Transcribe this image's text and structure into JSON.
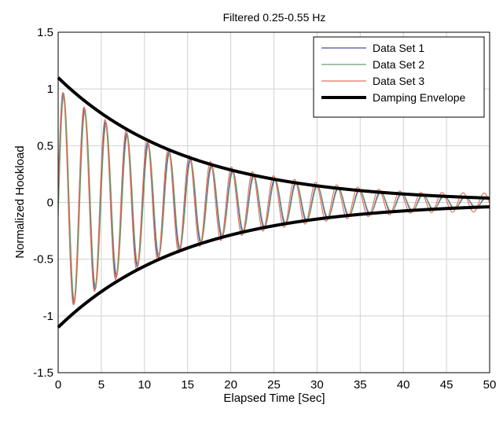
{
  "chart_data": {
    "type": "line",
    "title": "Filtered 0.25-0.55 Hz",
    "xlabel": "Elapsed Time [Sec]",
    "ylabel": "Normalized Hookload",
    "xlim": [
      0,
      50
    ],
    "ylim": [
      -1.5,
      1.5
    ],
    "x_ticks": [
      0,
      5,
      10,
      15,
      20,
      25,
      30,
      35,
      40,
      45,
      50
    ],
    "y_ticks": [
      -1.5,
      -1,
      -0.5,
      0,
      0.5,
      1,
      1.5
    ],
    "x_tick_labels": [
      "0",
      "5",
      "10",
      "15",
      "20",
      "25",
      "30",
      "35",
      "40",
      "45",
      "50"
    ],
    "y_tick_labels": [
      "-1.5",
      "-1",
      "-0.5",
      "0",
      "0.5",
      "1",
      "1.5"
    ],
    "grid": true,
    "legend_position": "top-right",
    "series": [
      {
        "name": "Data Set 1",
        "color": "#4a4aa8",
        "amplitude": 1.0,
        "decay_rate": 0.062,
        "period": 2.45,
        "phase_lag": 0.0,
        "description": "damped oscillation"
      },
      {
        "name": "Data Set 2",
        "color": "#6f9e6f",
        "amplitude": 0.98,
        "decay_rate": 0.064,
        "period": 2.45,
        "phase_lag": 0.05
      },
      {
        "name": "Data Set 3",
        "color": "#e0735a",
        "amplitude": 1.0,
        "decay_rate": 0.058,
        "period": 2.44,
        "phase_lag": -0.05,
        "late_amplitude": 0.1
      },
      {
        "name": "Damping Envelope",
        "color": "#000000",
        "envelope_start": 1.1,
        "envelope_end": 0.04,
        "decay_rate": 0.0672
      }
    ]
  }
}
